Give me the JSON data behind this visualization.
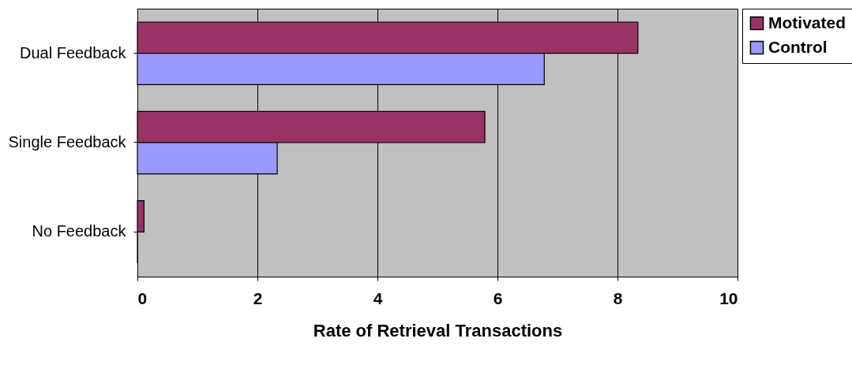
{
  "chart_data": {
    "type": "bar",
    "orientation": "horizontal",
    "xlabel": "Rate of Retrieval Transactions",
    "categories": [
      "Dual Feedback",
      "Single Feedback",
      "No Feedback"
    ],
    "series": [
      {
        "name": "Motivated",
        "color": "#993366",
        "values": [
          8.34,
          5.79,
          0.11
        ]
      },
      {
        "name": "Control",
        "color": "#9999ff",
        "values": [
          6.78,
          2.33,
          0
        ]
      }
    ],
    "xlim": [
      0,
      10
    ],
    "xticks": [
      0,
      2,
      4,
      6,
      8,
      10
    ],
    "grid": "x",
    "legend": "right"
  }
}
